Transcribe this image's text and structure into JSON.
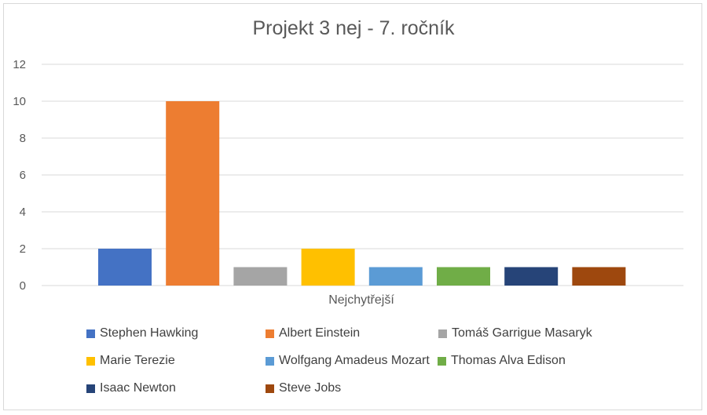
{
  "chart_data": {
    "type": "bar",
    "title": "Projekt 3 nej - 7. ročník",
    "xlabel": "Nejchytřejší",
    "ylabel": "",
    "ylim": [
      0,
      12
    ],
    "yticks": [
      0,
      2,
      4,
      6,
      8,
      10,
      12
    ],
    "grid": true,
    "legend_position": "bottom",
    "series": [
      {
        "name": "Stephen Hawking",
        "value": 2,
        "color": "#4472C4"
      },
      {
        "name": "Albert Einstein",
        "value": 10,
        "color": "#ED7D31"
      },
      {
        "name": "Tomáš Garrigue Masaryk",
        "value": 1,
        "color": "#A5A5A5"
      },
      {
        "name": "Marie Terezie",
        "value": 2,
        "color": "#FFC000"
      },
      {
        "name": "Wolfgang Amadeus Mozart",
        "value": 1,
        "color": "#5B9BD5"
      },
      {
        "name": "Thomas Alva Edison",
        "value": 1,
        "color": "#70AD47"
      },
      {
        "name": "Isaac Newton",
        "value": 1,
        "color": "#264478"
      },
      {
        "name": "Steve Jobs",
        "value": 1,
        "color": "#9E480E"
      }
    ]
  }
}
